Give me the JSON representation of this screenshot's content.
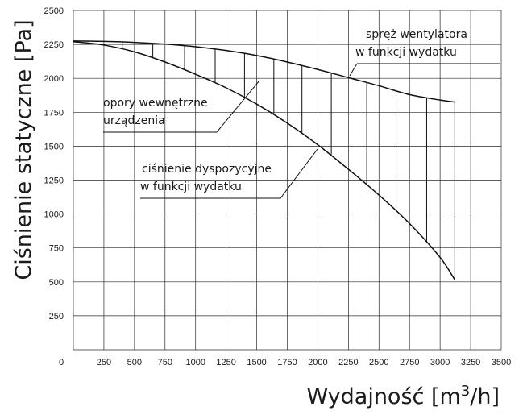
{
  "chart_data": {
    "type": "line",
    "xlabel": "Wydajność [m³/h]",
    "ylabel": "Ciśnienie statyczne [Pa]",
    "xlim": [
      0,
      3500
    ],
    "ylim": [
      0,
      2500
    ],
    "x_ticks": [
      0,
      250,
      500,
      750,
      1000,
      1250,
      1500,
      1750,
      2000,
      2250,
      2500,
      2750,
      3000,
      3250,
      3500
    ],
    "y_ticks": [
      250,
      500,
      750,
      1000,
      1250,
      1500,
      1750,
      2000,
      2250,
      2500
    ],
    "grid": true,
    "hatch_x": [
      400,
      650,
      910,
      1160,
      1400,
      1640,
      1870,
      2110,
      2400,
      2640,
      2890,
      3120
    ],
    "series": [
      {
        "x": [
          0,
          250,
          500,
          750,
          1000,
          1250,
          1500,
          1750,
          2000,
          2250,
          2500,
          2750,
          3000,
          3120
        ],
        "y": [
          2275,
          2272,
          2265,
          2252,
          2233,
          2205,
          2168,
          2120,
          2065,
          2005,
          1945,
          1880,
          1840,
          1825
        ]
      },
      {
        "x": [
          0,
          250,
          500,
          750,
          1000,
          1250,
          1500,
          1750,
          2000,
          2250,
          2500,
          2750,
          3000,
          3120
        ],
        "y": [
          2270,
          2245,
          2195,
          2120,
          2030,
          1930,
          1810,
          1670,
          1510,
          1330,
          1140,
          930,
          680,
          515
        ]
      }
    ],
    "annotations": [
      {
        "lines": [
          "spręż wentylatora",
          "w funkcji wydatku"
        ]
      },
      {
        "lines": [
          "opory wewnętrzne",
          "urządzenia"
        ]
      },
      {
        "lines": [
          "ciśnienie dyspozycyjne",
          "w funkcji wydatku"
        ]
      }
    ]
  }
}
